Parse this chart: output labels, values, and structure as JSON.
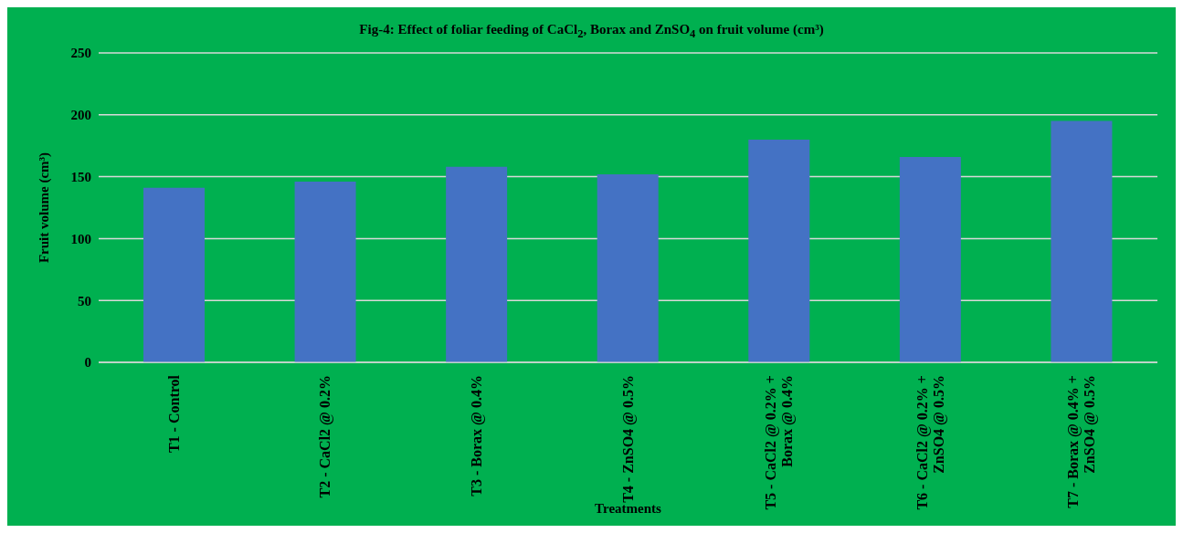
{
  "chart_data": {
    "type": "bar",
    "title": "Fig-4:  Effect of foliar feeding of CaCl$_{2}$, Borax and ZnSO$_{4}$ on fruit volume (cm³)",
    "xlabel": "Treatments",
    "ylabel": "Fruit volume (cm³)",
    "categories": [
      "T1 - Control",
      "T2 - CaCl2 @ 0.2%",
      "T3 - Borax @ 0.4%",
      "T4 - ZnSO4 @ 0.5%",
      "T5 - CaCl2 @ 0.2% + Borax @ 0.4%",
      "T6 - CaCl2 @ 0.2% + ZnSO4 @ 0.5%",
      "T7 - Borax @ 0.4% + ZnSO4 @ 0.5%"
    ],
    "values": [
      141,
      146,
      158,
      152,
      180,
      166,
      195
    ],
    "color": "#4472c4",
    "ylim": [
      0,
      250
    ],
    "yticks": [
      0,
      50,
      100,
      150,
      200,
      250
    ],
    "grid": "y",
    "legend": false
  }
}
